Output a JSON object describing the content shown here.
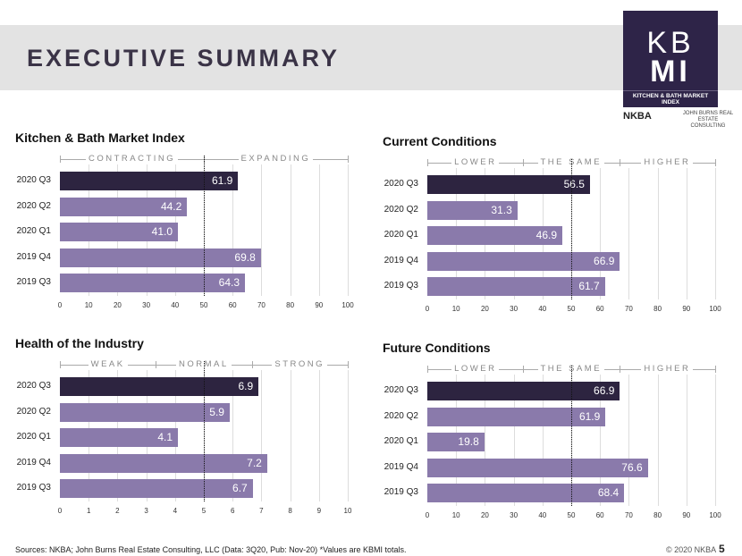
{
  "header": {
    "title": "EXECUTIVE SUMMARY",
    "logo": {
      "line1": "KB",
      "line2": "MI",
      "subtitle": "KITCHEN & BATH MARKET INDEX",
      "nkba": "NKBA",
      "jbrec": "JOHN BURNS REAL ESTATE CONSULTING"
    }
  },
  "colors": {
    "current": "#2d2440",
    "prior": "#8a7aab"
  },
  "chart_data": [
    {
      "type": "bar",
      "title": "Kitchen & Bath Market Index",
      "categories": [
        "2020 Q3",
        "2020 Q2",
        "2020 Q1",
        "2019 Q4",
        "2019 Q3"
      ],
      "values": [
        61.9,
        44.2,
        41.0,
        69.8,
        64.3
      ],
      "labels": [
        "61.9",
        "44.2",
        "41.0",
        "69.8",
        "64.3"
      ],
      "xlim": [
        0,
        100
      ],
      "ticks": [
        "0",
        "10",
        "20",
        "30",
        "40",
        "50",
        "60",
        "70",
        "80",
        "90",
        "100"
      ],
      "reference": 50,
      "zones": [
        {
          "label": "CONTRACTING",
          "from": 0,
          "to": 50
        },
        {
          "label": "EXPANDING",
          "from": 50,
          "to": 100
        }
      ]
    },
    {
      "type": "bar",
      "title": "Current Conditions",
      "categories": [
        "2020 Q3",
        "2020 Q2",
        "2020 Q1",
        "2019 Q4",
        "2019 Q3"
      ],
      "values": [
        56.5,
        31.3,
        46.9,
        66.9,
        61.7
      ],
      "labels": [
        "56.5",
        "31.3",
        "46.9",
        "66.9",
        "61.7"
      ],
      "xlim": [
        0,
        100
      ],
      "ticks": [
        "0",
        "10",
        "20",
        "30",
        "40",
        "50",
        "60",
        "70",
        "80",
        "90",
        "100"
      ],
      "reference": 50,
      "zones": [
        {
          "label": "LOWER",
          "from": 0,
          "to": 33.3
        },
        {
          "label": "THE SAME",
          "from": 33.3,
          "to": 66.7
        },
        {
          "label": "HIGHER",
          "from": 66.7,
          "to": 100
        }
      ]
    },
    {
      "type": "bar",
      "title": "Health of the Industry",
      "categories": [
        "2020 Q3",
        "2020 Q2",
        "2020 Q1",
        "2019 Q4",
        "2019 Q3"
      ],
      "values": [
        6.9,
        5.9,
        4.1,
        7.2,
        6.7
      ],
      "labels": [
        "6.9",
        "5.9",
        "4.1",
        "7.2",
        "6.7"
      ],
      "xlim": [
        0,
        10
      ],
      "ticks": [
        "0",
        "1",
        "2",
        "3",
        "4",
        "5",
        "6",
        "7",
        "8",
        "9",
        "10"
      ],
      "reference": 5,
      "zones": [
        {
          "label": "WEAK",
          "from": 0,
          "to": 3.33
        },
        {
          "label": "NORMAL",
          "from": 3.33,
          "to": 6.67
        },
        {
          "label": "STRONG",
          "from": 6.67,
          "to": 10
        }
      ]
    },
    {
      "type": "bar",
      "title": "Future Conditions",
      "categories": [
        "2020 Q3",
        "2020 Q2",
        "2020 Q1",
        "2019 Q4",
        "2019 Q3"
      ],
      "values": [
        66.9,
        61.9,
        19.8,
        76.6,
        68.4
      ],
      "labels": [
        "66.9",
        "61.9",
        "19.8",
        "76.6",
        "68.4"
      ],
      "xlim": [
        0,
        100
      ],
      "ticks": [
        "0",
        "10",
        "20",
        "30",
        "40",
        "50",
        "60",
        "70",
        "80",
        "90",
        "100"
      ],
      "reference": 50,
      "zones": [
        {
          "label": "LOWER",
          "from": 0,
          "to": 33.3
        },
        {
          "label": "THE SAME",
          "from": 33.3,
          "to": 66.7
        },
        {
          "label": "HIGHER",
          "from": 66.7,
          "to": 100
        }
      ]
    }
  ],
  "footer": {
    "sources": "Sources: NKBA; John Burns Real Estate Consulting, LLC (Data: 3Q20, Pub: Nov-20) *Values are KBMI totals.",
    "copyright": "© 2020 NKBA",
    "page": "5"
  }
}
